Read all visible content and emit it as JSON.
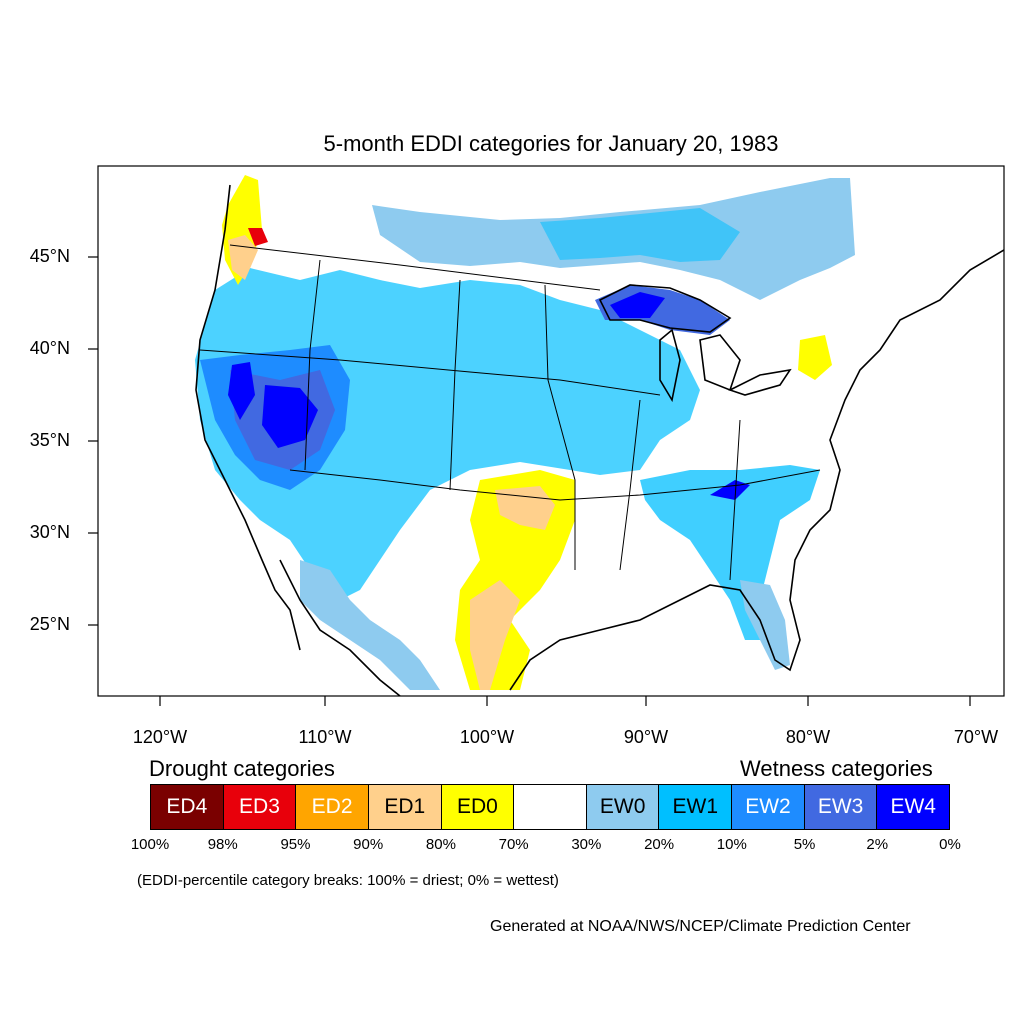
{
  "title": "5-month EDDI categories for January 20, 1983",
  "axes": {
    "lat_labels": [
      "45°N",
      "40°N",
      "35°N",
      "30°N",
      "25°N"
    ],
    "lon_labels": [
      "120°W",
      "110°W",
      "100°W",
      "90°W",
      "80°W",
      "70°W"
    ]
  },
  "legend": {
    "drought_heading": "Drought categories",
    "wetness_heading": "Wetness categories",
    "categories": [
      {
        "label": "ED4",
        "color": "#7a0000",
        "text_color": "#ffffff"
      },
      {
        "label": "ED3",
        "color": "#e8000b",
        "text_color": "#ffffff"
      },
      {
        "label": "ED2",
        "color": "#ffa500",
        "text_color": "#ffffff"
      },
      {
        "label": "ED1",
        "color": "#ffd08c",
        "text_color": "#000000"
      },
      {
        "label": "ED0",
        "color": "#ffff00",
        "text_color": "#000000"
      },
      {
        "label": "",
        "color": "#ffffff",
        "text_color": "#000000"
      },
      {
        "label": "EW0",
        "color": "#8ecbef",
        "text_color": "#000000"
      },
      {
        "label": "EW1",
        "color": "#00bfff",
        "text_color": "#000000"
      },
      {
        "label": "EW2",
        "color": "#1e8cff",
        "text_color": "#ffffff"
      },
      {
        "label": "EW3",
        "color": "#4169e1",
        "text_color": "#ffffff"
      },
      {
        "label": "EW4",
        "color": "#0000ff",
        "text_color": "#ffffff"
      }
    ],
    "breaks": [
      "100%",
      "98%",
      "95%",
      "90%",
      "80%",
      "70%",
      "30%",
      "20%",
      "10%",
      "5%",
      "2%",
      "0%"
    ],
    "note": "(EDDI-percentile category breaks: 100% = driest; 0% = wettest)"
  },
  "credit": "Generated at NOAA/NWS/NCEP/Climate Prediction Center"
}
